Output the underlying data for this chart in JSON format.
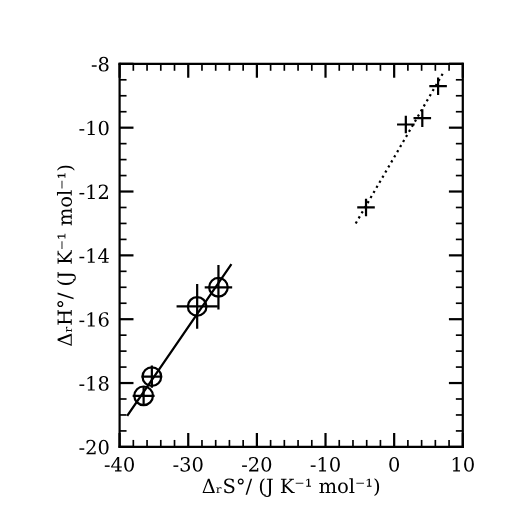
{
  "chart_data": {
    "type": "scatter",
    "xlabel": "ΔᵣS°/ (J K⁻¹ mol⁻¹)",
    "ylabel": "ΔᵣH°/ (J K⁻¹ mol⁻¹)",
    "xlim": [
      -40,
      10
    ],
    "ylim": [
      -20,
      -8
    ],
    "xticks": [
      -40,
      -30,
      -20,
      -10,
      0,
      10
    ],
    "yticks": [
      -20,
      -18,
      -16,
      -14,
      -12,
      -10,
      -8
    ],
    "grid": false,
    "legend": false,
    "series": [
      {
        "marker": "circle",
        "color": "#000000",
        "x": [
          -36.5,
          -35.3,
          -28.7,
          -25.6
        ],
        "values": [
          -18.4,
          -17.8,
          -15.6,
          -15.0
        ],
        "xerrors": [
          1.6,
          1.5,
          3,
          2
        ],
        "errors": [
          0.3,
          0.35,
          0.7,
          0.7
        ]
      },
      {
        "marker": "cross",
        "color": "#000000",
        "x": [
          -4.1,
          1.7,
          4.1,
          6.4
        ],
        "values": [
          -12.5,
          -9.9,
          -9.7,
          -8.7
        ]
      },
      {
        "type": "line",
        "line_style": "solid",
        "color": "#000000",
        "x": [
          -38.8,
          -23.8
        ],
        "values": [
          -19.0,
          -14.3
        ]
      },
      {
        "type": "line",
        "line_style": "dotted",
        "color": "#000000",
        "x": [
          -5.6,
          7.1
        ],
        "values": [
          -13.0,
          -8.3
        ]
      }
    ]
  }
}
